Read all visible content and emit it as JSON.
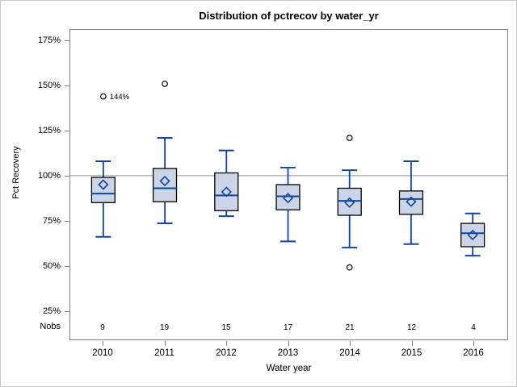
{
  "colors": {
    "background": "#ffffff",
    "figure_border": "#c9c9c9",
    "plot_frame": "#868686",
    "box_fill": "#ccd5e5",
    "box_border": "#000000",
    "line_blue": "#10459f",
    "reference_line": "#a9a9a9",
    "outlier": "#000000",
    "text": "#000000"
  },
  "chart_data": {
    "type": "boxplot",
    "title": "Distribution of pctrecov by water_yr",
    "xlabel": "Water year",
    "ylabel": "Pct Recovery",
    "nobs_label": "Nobs",
    "legend": null,
    "grid": false,
    "reference_line": 100,
    "ylim": [
      9,
      181
    ],
    "y_ticks": [
      {
        "label": "175%",
        "value": 175
      },
      {
        "label": "150%",
        "value": 150
      },
      {
        "label": "125%",
        "value": 125
      },
      {
        "label": "100%",
        "value": 100
      },
      {
        "label": "75%",
        "value": 75
      },
      {
        "label": "50%",
        "value": 50
      },
      {
        "label": "25%",
        "value": 25
      }
    ],
    "categories": [
      "2010",
      "2011",
      "2012",
      "2013",
      "2014",
      "2015",
      "2016"
    ],
    "series": [
      {
        "year": "2010",
        "nobs": "9",
        "whisker_low": 66,
        "q1": 85,
        "median": 90,
        "q3": 99,
        "whisker_high": 108,
        "mean": 95,
        "outliers": [
          {
            "value": 144,
            "label": "144%"
          }
        ]
      },
      {
        "year": "2011",
        "nobs": "19",
        "whisker_low": 73.5,
        "q1": 85.5,
        "median": 93,
        "q3": 104,
        "whisker_high": 121,
        "mean": 97,
        "outliers": [
          {
            "value": 151
          }
        ]
      },
      {
        "year": "2012",
        "nobs": "15",
        "whisker_low": 77.5,
        "q1": 80.5,
        "median": 89,
        "q3": 101.5,
        "whisker_high": 114,
        "mean": 91,
        "outliers": []
      },
      {
        "year": "2013",
        "nobs": "17",
        "whisker_low": 63.5,
        "q1": 81,
        "median": 88.5,
        "q3": 95,
        "whisker_high": 104.5,
        "mean": 87.5,
        "outliers": []
      },
      {
        "year": "2014",
        "nobs": "21",
        "whisker_low": 60,
        "q1": 78,
        "median": 86,
        "q3": 93,
        "whisker_high": 103,
        "mean": 85,
        "outliers": [
          {
            "value": 121
          },
          {
            "value": 49
          }
        ]
      },
      {
        "year": "2015",
        "nobs": "12",
        "whisker_low": 62,
        "q1": 78.5,
        "median": 87,
        "q3": 91.5,
        "whisker_high": 108,
        "mean": 85.5,
        "outliers": []
      },
      {
        "year": "2016",
        "nobs": "4",
        "whisker_low": 55.5,
        "q1": 60.5,
        "median": 68,
        "q3": 73.5,
        "whisker_high": 79,
        "mean": 67,
        "outliers": []
      }
    ]
  }
}
